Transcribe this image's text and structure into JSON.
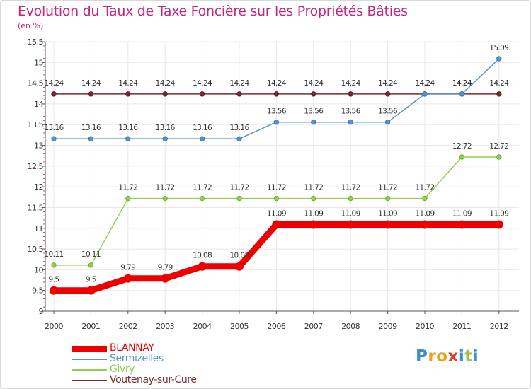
{
  "chart_data": {
    "type": "line",
    "title": "Evolution du Taux de Taxe Foncière sur les Propriétés Bâties",
    "unit_label": "(en %)",
    "xlabel": "",
    "ylabel": "",
    "categories": [
      "2000",
      "2001",
      "2002",
      "2003",
      "2004",
      "2005",
      "2006",
      "2007",
      "2008",
      "2009",
      "2010",
      "2011",
      "2012"
    ],
    "ylim": [
      9,
      15.5
    ],
    "ytick_labels": [
      "9",
      "9.5",
      "10",
      "10.5",
      "11",
      "11.5",
      "12",
      "12.5",
      "13",
      "13.5",
      "14",
      "14.5",
      "15",
      "15.5"
    ],
    "series": [
      {
        "name": "BLANNAY",
        "color": "#ee0000",
        "values": [
          9.5,
          9.5,
          9.79,
          9.79,
          10.08,
          10.08,
          11.09,
          11.09,
          11.09,
          11.09,
          11.09,
          11.09,
          11.09
        ],
        "labels": [
          "9.5",
          "9.5",
          "9.79",
          "9.79",
          "10.08",
          "10.08",
          "11.09",
          "11.09",
          "11.09",
          "11.09",
          "11.09",
          "11.09",
          "11.09"
        ]
      },
      {
        "name": "Sermizelles",
        "color": "#5b93c7",
        "values": [
          13.16,
          13.16,
          13.16,
          13.16,
          13.16,
          13.16,
          13.56,
          13.56,
          13.56,
          13.56,
          14.24,
          14.24,
          15.09
        ],
        "labels": [
          "13.16",
          "13.16",
          "13.16",
          "13.16",
          "13.16",
          "13.16",
          "13.56",
          "13.56",
          "13.56",
          "13.56",
          "14.24",
          "14.24",
          "15.09"
        ]
      },
      {
        "name": "Givry",
        "color": "#8fd14f",
        "values": [
          10.11,
          10.11,
          11.72,
          11.72,
          11.72,
          11.72,
          11.72,
          11.72,
          11.72,
          11.72,
          11.72,
          12.72,
          12.72
        ],
        "labels": [
          "10.11",
          "10.11",
          "11.72",
          "11.72",
          "11.72",
          "11.72",
          "11.72",
          "11.72",
          "11.72",
          "11.72",
          "11.72",
          "12.72",
          "12.72"
        ]
      },
      {
        "name": "Voutenay-sur-Cure",
        "color": "#7a2b2b",
        "values": [
          14.24,
          14.24,
          14.24,
          14.24,
          14.24,
          14.24,
          14.24,
          14.24,
          14.24,
          14.24,
          14.24,
          14.24,
          14.24
        ],
        "labels": [
          "14.24",
          "14.24",
          "14.24",
          "14.24",
          "14.24",
          "14.24",
          "14.24",
          "14.24",
          "14.24",
          "14.24",
          "14.24",
          "14.24",
          "14.24"
        ]
      }
    ],
    "legend": [
      "BLANNAY",
      "Sermizelles",
      "Givry",
      "Voutenay-sur-Cure"
    ],
    "legend_position": "bottom-left"
  },
  "logo": {
    "text": "Proxiti",
    "letters": [
      "P",
      "r",
      "o",
      "x",
      "i",
      "t",
      "i"
    ],
    "colors": [
      "#3b8fd0",
      "#e9a21f",
      "#e9a21f",
      "#d93c2f",
      "#3b8fd0",
      "#9ac53a",
      "#3b8fd0"
    ]
  }
}
